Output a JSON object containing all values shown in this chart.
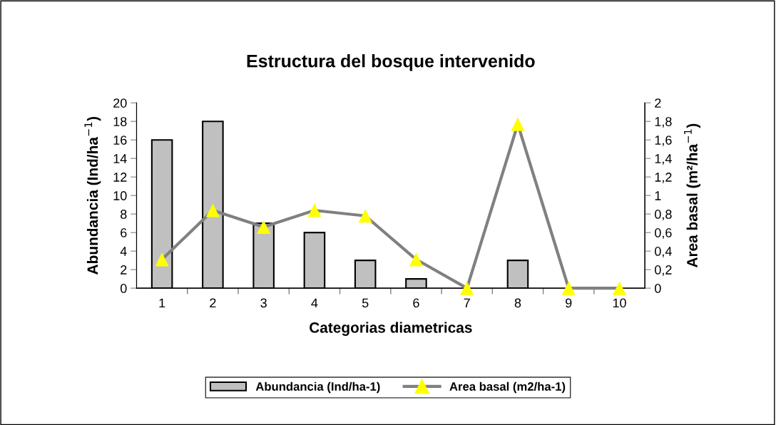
{
  "chart_data": {
    "type": "bar",
    "title": "Estructura del bosque intervenido",
    "xlabel": "Categorias diametricas",
    "ylabel": "Abundancia (Ind/ha$^{−1}$)",
    "y2label": "Area basal (m²/ha$^{−1}$)",
    "categories": [
      "1",
      "2",
      "3",
      "4",
      "5",
      "6",
      "7",
      "8",
      "9",
      "10"
    ],
    "series": [
      {
        "name": "Abundancia (Ind/ha-1)",
        "color": "#c0c0c0",
        "values": [
          16,
          18,
          7,
          6,
          3,
          1,
          0,
          3,
          0,
          0
        ]
      },
      {
        "name": "Area basal (m2/ha-1)",
        "type": "line",
        "axis": "y2",
        "color": "#808080",
        "marker": "triangle",
        "colors": [
          "#ffff00",
          "#ffff00",
          "#ffff00",
          "#ffff00",
          "#ffff00",
          "#ffff00",
          "#ffff00",
          "#ffff00",
          "#ffff00",
          "#ffff00"
        ],
        "values": [
          0.31,
          0.84,
          0.66,
          0.84,
          0.78,
          0.31,
          0,
          1.77,
          0,
          0
        ]
      }
    ],
    "ylim": [
      0,
      20
    ],
    "yticks": [
      0,
      2,
      4,
      6,
      8,
      10,
      12,
      14,
      16,
      18,
      20
    ],
    "y2lim": [
      0,
      2
    ],
    "y2ticks": [
      {
        "value": 0,
        "label": "0"
      },
      {
        "value": 0.2,
        "label": "0,2"
      },
      {
        "value": 0.4,
        "label": "0,4"
      },
      {
        "value": 0.6,
        "label": "0,6"
      },
      {
        "value": 0.8,
        "label": "0,8"
      },
      {
        "value": 1,
        "label": "1"
      },
      {
        "value": 1.2,
        "label": "1,2"
      },
      {
        "value": 1.4,
        "label": "1,4"
      },
      {
        "value": 1.6,
        "label": "1,6"
      },
      {
        "value": 1.8,
        "label": "1,8"
      },
      {
        "value": 2,
        "label": "2"
      }
    ],
    "grid": false,
    "legend": "bottom"
  }
}
